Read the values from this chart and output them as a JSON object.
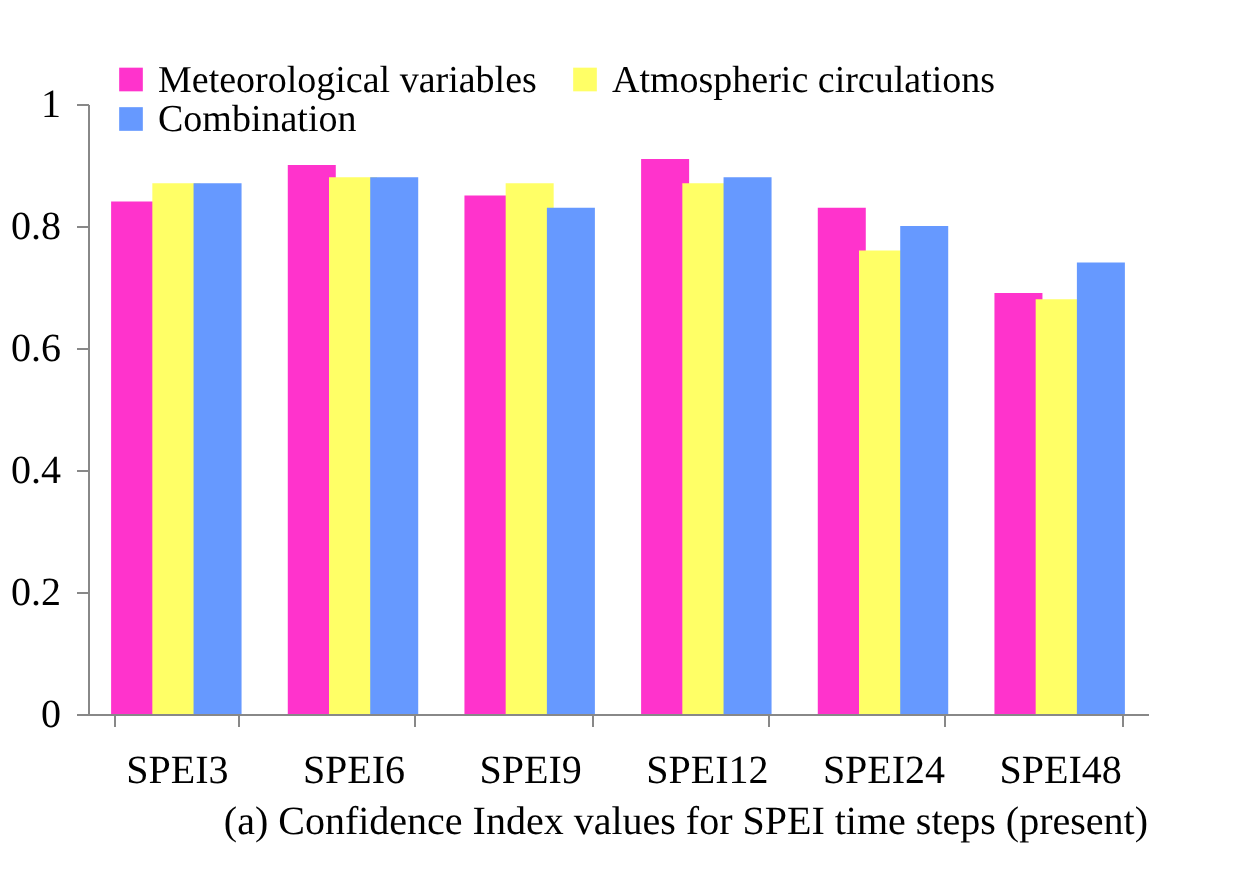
{
  "chart_data": {
    "type": "bar",
    "categories": [
      "SPEI3",
      "SPEI6",
      "SPEI9",
      "SPEI12",
      "SPEI24",
      "SPEI48"
    ],
    "series": [
      {
        "name": "Meteorological variables",
        "color": "#ff33cc",
        "values": [
          0.84,
          0.9,
          0.85,
          0.91,
          0.83,
          0.69
        ]
      },
      {
        "name": "Atmospheric circulations",
        "color": "#ffff66",
        "values": [
          0.87,
          0.88,
          0.87,
          0.87,
          0.76,
          0.68
        ]
      },
      {
        "name": "Combination",
        "color": "#6699ff",
        "values": [
          0.87,
          0.88,
          0.83,
          0.88,
          0.8,
          0.74
        ]
      }
    ],
    "ylim": [
      0,
      1
    ],
    "yticks": [
      0,
      0.2,
      0.4,
      0.6,
      0.8,
      1
    ],
    "grid": false,
    "legend": "top left",
    "annotations": [
      "(a) Confidence Index values for SPEI time steps (present)"
    ]
  }
}
